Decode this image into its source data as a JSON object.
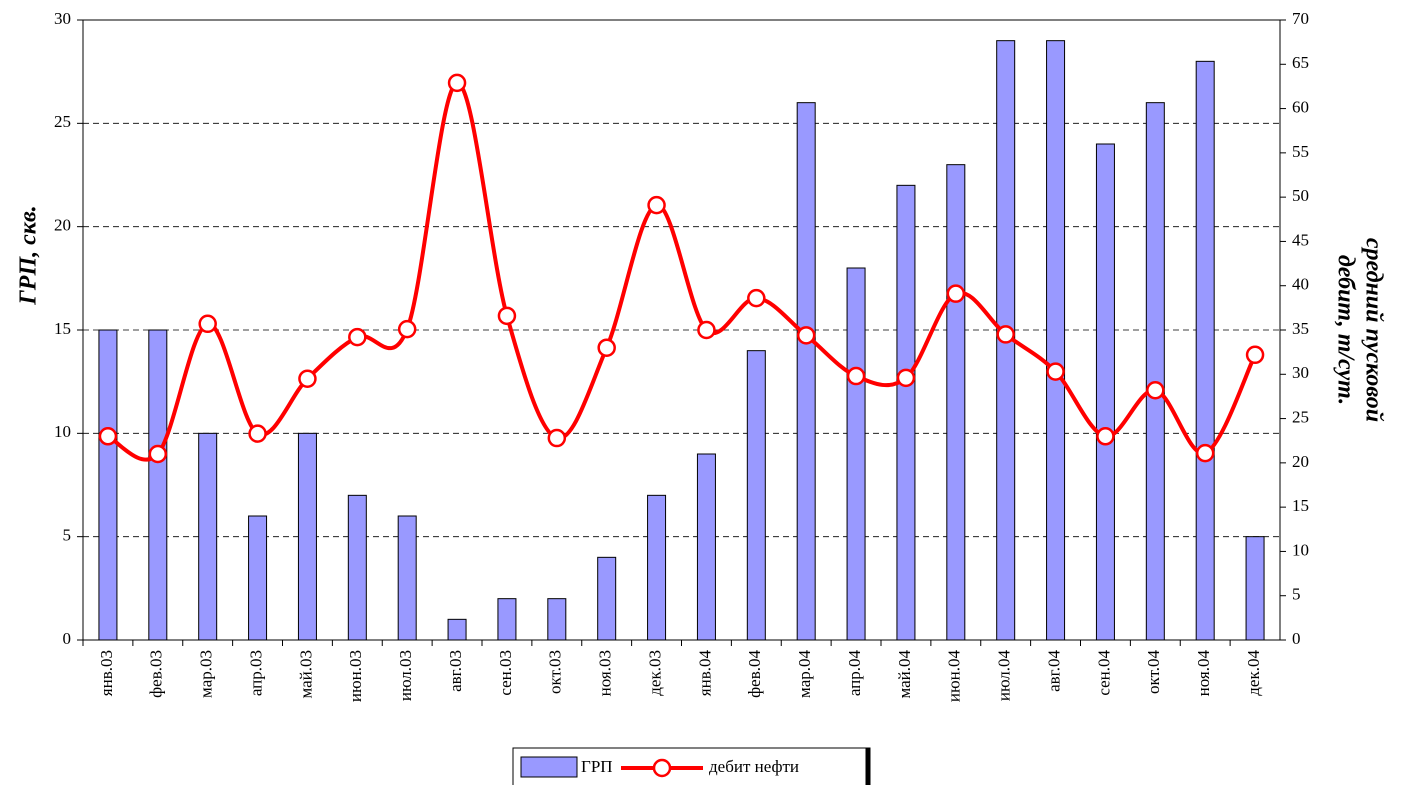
{
  "chart_data": {
    "type": "bar-line",
    "ylabel": "ГРП, скв.",
    "y2label": [
      "средний пусковой",
      "дебит, т/сут."
    ],
    "categories": [
      "янв.03",
      "фев.03",
      "мар.03",
      "апр.03",
      "май.03",
      "июн.03",
      "июл.03",
      "авг.03",
      "сен.03",
      "окт.03",
      "ноя.03",
      "дек.03",
      "янв.04",
      "фев.04",
      "мар.04",
      "апр.04",
      "май.04",
      "июн.04",
      "июл.04",
      "авг.04",
      "сен.04",
      "окт.04",
      "ноя.04",
      "дек.04"
    ],
    "series": [
      {
        "name": "ГРП",
        "type": "bar",
        "color": "#9999ff",
        "values": [
          15,
          15,
          10,
          6,
          10,
          7,
          6,
          1,
          2,
          2,
          4,
          7,
          9,
          14,
          26,
          18,
          22,
          23,
          29,
          29,
          24,
          26,
          28,
          5
        ]
      },
      {
        "name": "дебит нефти",
        "type": "line",
        "axis": "y2",
        "color": "#ff0000",
        "values": [
          23.0,
          21.0,
          35.7,
          23.3,
          29.5,
          34.2,
          35.1,
          62.9,
          36.6,
          22.8,
          33.0,
          49.1,
          35.0,
          38.6,
          34.4,
          29.8,
          29.6,
          39.1,
          34.5,
          30.3,
          23.0,
          28.2,
          21.1,
          32.2
        ]
      }
    ],
    "ylim": [
      0,
      30
    ],
    "yticks": [
      0,
      5,
      10,
      15,
      20,
      25,
      30
    ],
    "y2lim": [
      0,
      70
    ],
    "y2ticks": [
      0,
      5,
      10,
      15,
      20,
      25,
      30,
      35,
      40,
      45,
      50,
      55,
      60,
      65,
      70
    ],
    "grid": true,
    "legend": "bottom"
  }
}
